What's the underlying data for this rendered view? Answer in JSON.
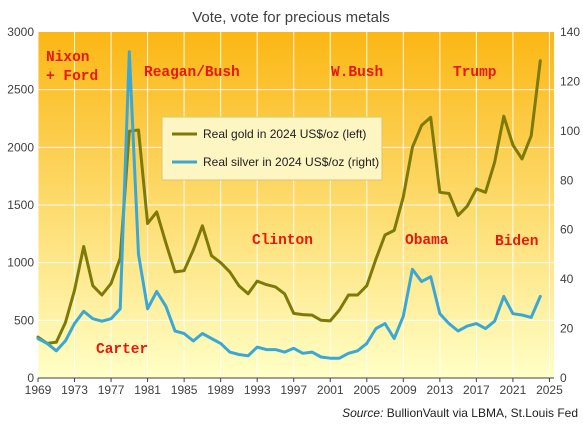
{
  "chart_data": {
    "type": "line",
    "title": "Vote, vote for precious metals",
    "source_label": "Source:",
    "source_text": "BullionVault via LBMA, St.Louis Fed",
    "x": [
      1969,
      1970,
      1971,
      1972,
      1973,
      1974,
      1975,
      1976,
      1977,
      1978,
      1979,
      1980,
      1981,
      1982,
      1983,
      1984,
      1985,
      1986,
      1987,
      1988,
      1989,
      1990,
      1991,
      1992,
      1993,
      1994,
      1995,
      1996,
      1997,
      1998,
      1999,
      2000,
      2001,
      2002,
      2003,
      2004,
      2005,
      2006,
      2007,
      2008,
      2009,
      2010,
      2011,
      2012,
      2013,
      2014,
      2015,
      2016,
      2017,
      2018,
      2019,
      2020,
      2021,
      2022,
      2023,
      2024
    ],
    "xlim": [
      1969,
      2025.5
    ],
    "x_ticks": [
      1969,
      1973,
      1977,
      1981,
      1985,
      1989,
      1993,
      1997,
      2001,
      2005,
      2009,
      2013,
      2017,
      2021,
      2025
    ],
    "y_left": {
      "lim": [
        0,
        3000
      ],
      "ticks": [
        0,
        500,
        1000,
        1500,
        2000,
        2500,
        3000
      ]
    },
    "y_right": {
      "lim": [
        0,
        140
      ],
      "ticks": [
        0,
        20,
        40,
        60,
        80,
        100,
        120,
        140
      ]
    },
    "series": [
      {
        "name": "Real gold in 2024 US$/oz (left)",
        "axis": "left",
        "color": "#7d7a0a",
        "values": [
          355,
          300,
          310,
          480,
          760,
          1140,
          800,
          720,
          820,
          1040,
          2140,
          2150,
          1340,
          1440,
          1170,
          920,
          930,
          1110,
          1320,
          1060,
          1000,
          920,
          800,
          730,
          840,
          810,
          790,
          730,
          560,
          550,
          545,
          500,
          495,
          590,
          720,
          720,
          800,
          1030,
          1240,
          1280,
          1570,
          2000,
          2190,
          2260,
          1610,
          1600,
          1410,
          1490,
          1640,
          1610,
          1870,
          2270,
          2020,
          1900,
          2100,
          2750
        ]
      },
      {
        "name": "Real silver in 2024 US$/oz (right)",
        "axis": "right",
        "color": "#3aa8d6",
        "values": [
          16,
          14,
          11,
          15,
          22,
          27,
          24,
          23,
          24,
          28,
          132,
          50,
          28,
          35,
          29,
          19,
          18,
          15,
          18,
          16,
          14,
          10.5,
          9.5,
          9,
          12.5,
          11.5,
          11.5,
          10.5,
          12,
          10,
          10.5,
          8.5,
          8,
          8,
          10,
          11,
          14,
          20,
          22,
          16,
          25,
          44,
          39,
          41,
          26,
          22,
          19,
          21,
          22,
          20,
          23,
          33,
          26,
          25.5,
          24.5,
          33
        ]
      }
    ],
    "annotations": [
      "Nixon",
      "+ Ford",
      "Carter",
      "Reagan/Bush",
      "Clinton",
      "W.Bush",
      "Obama",
      "Trump",
      "Biden"
    ],
    "legend_position": "center",
    "colors": {
      "bg_top": "#fbb714",
      "bg_bottom": "#ffffc6",
      "annotation": "#e8180c",
      "legend_fill": "#fdf5c2"
    }
  }
}
